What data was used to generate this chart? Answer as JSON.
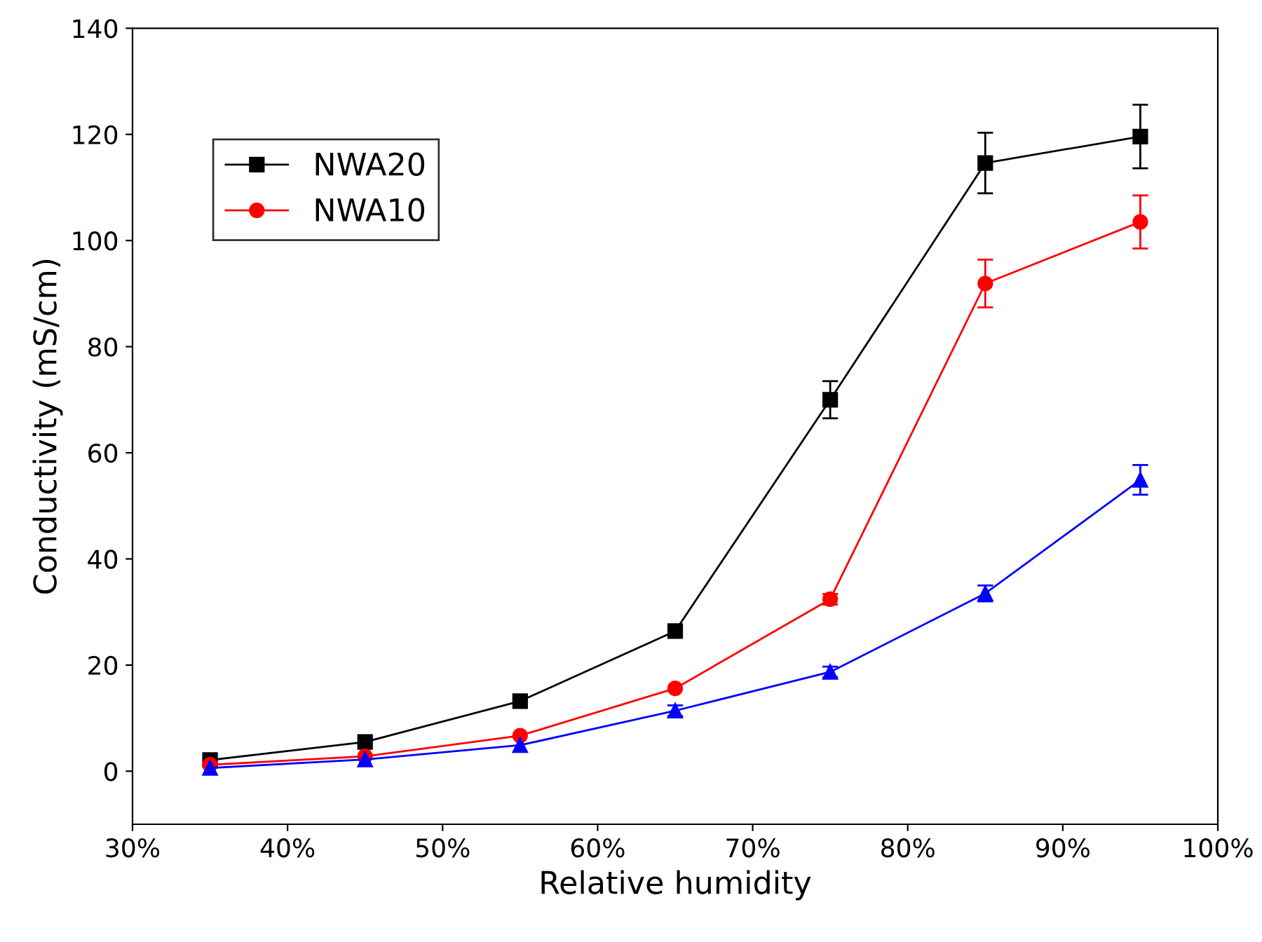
{
  "chart_data": {
    "type": "line",
    "xlabel": "Relative humidity",
    "ylabel": "Conductivity (mS/cm)",
    "x": [
      35,
      45,
      55,
      65,
      75,
      85,
      95
    ],
    "series": [
      {
        "name": "NWA20",
        "color": "#000000",
        "marker": "square",
        "values": [
          2.1,
          5.5,
          13.2,
          26.4,
          70,
          114.6,
          119.6
        ],
        "errors": [
          null,
          null,
          null,
          null,
          3.5,
          5.7,
          6
        ]
      },
      {
        "name": "NWA10",
        "color": "#ff0000",
        "marker": "circle",
        "values": [
          1.2,
          2.8,
          6.7,
          15.6,
          32.4,
          91.9,
          103.5
        ],
        "errors": [
          null,
          null,
          null,
          null,
          1,
          4.5,
          5
        ]
      },
      {
        "color": "#0000ff",
        "marker": "triangle",
        "values": [
          0.6,
          2.2,
          4.9,
          11.4,
          18.7,
          33.5,
          54.9
        ],
        "errors": [
          null,
          null,
          null,
          1,
          1,
          1.5,
          2.8
        ]
      }
    ],
    "xlim": [
      30,
      100
    ],
    "xticks": [
      {
        "value": 30,
        "label": "30%"
      },
      {
        "value": 40,
        "label": "40%"
      },
      {
        "value": 50,
        "label": "50%"
      },
      {
        "value": 60,
        "label": "60%"
      },
      {
        "value": 70,
        "label": "70%"
      },
      {
        "value": 80,
        "label": "80%"
      },
      {
        "value": 90,
        "label": "90%"
      },
      {
        "value": 100,
        "label": "100%"
      }
    ],
    "ylim": [
      -10,
      140
    ],
    "yticks": [
      0,
      20,
      40,
      60,
      80,
      100,
      120,
      140
    ],
    "legend": "top left",
    "grid": false,
    "line_style": "solid"
  }
}
